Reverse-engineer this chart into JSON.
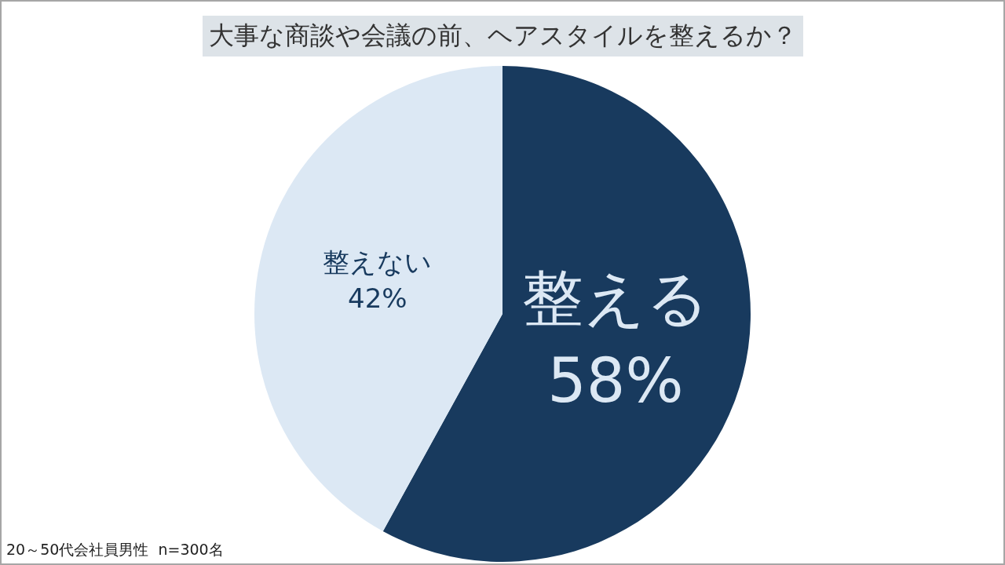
{
  "chart_data": {
    "type": "pie",
    "title": "大事な商談や会議の前、ヘアスタイルを整えるか？",
    "categories": [
      "整える",
      "整えない"
    ],
    "values": [
      58,
      42
    ],
    "value_labels": [
      "58%",
      "42%"
    ],
    "colors": [
      "#183a5e",
      "#dce8f4"
    ],
    "legend": false,
    "annotations": [
      "20～50代会社員男性  n=300名"
    ]
  }
}
